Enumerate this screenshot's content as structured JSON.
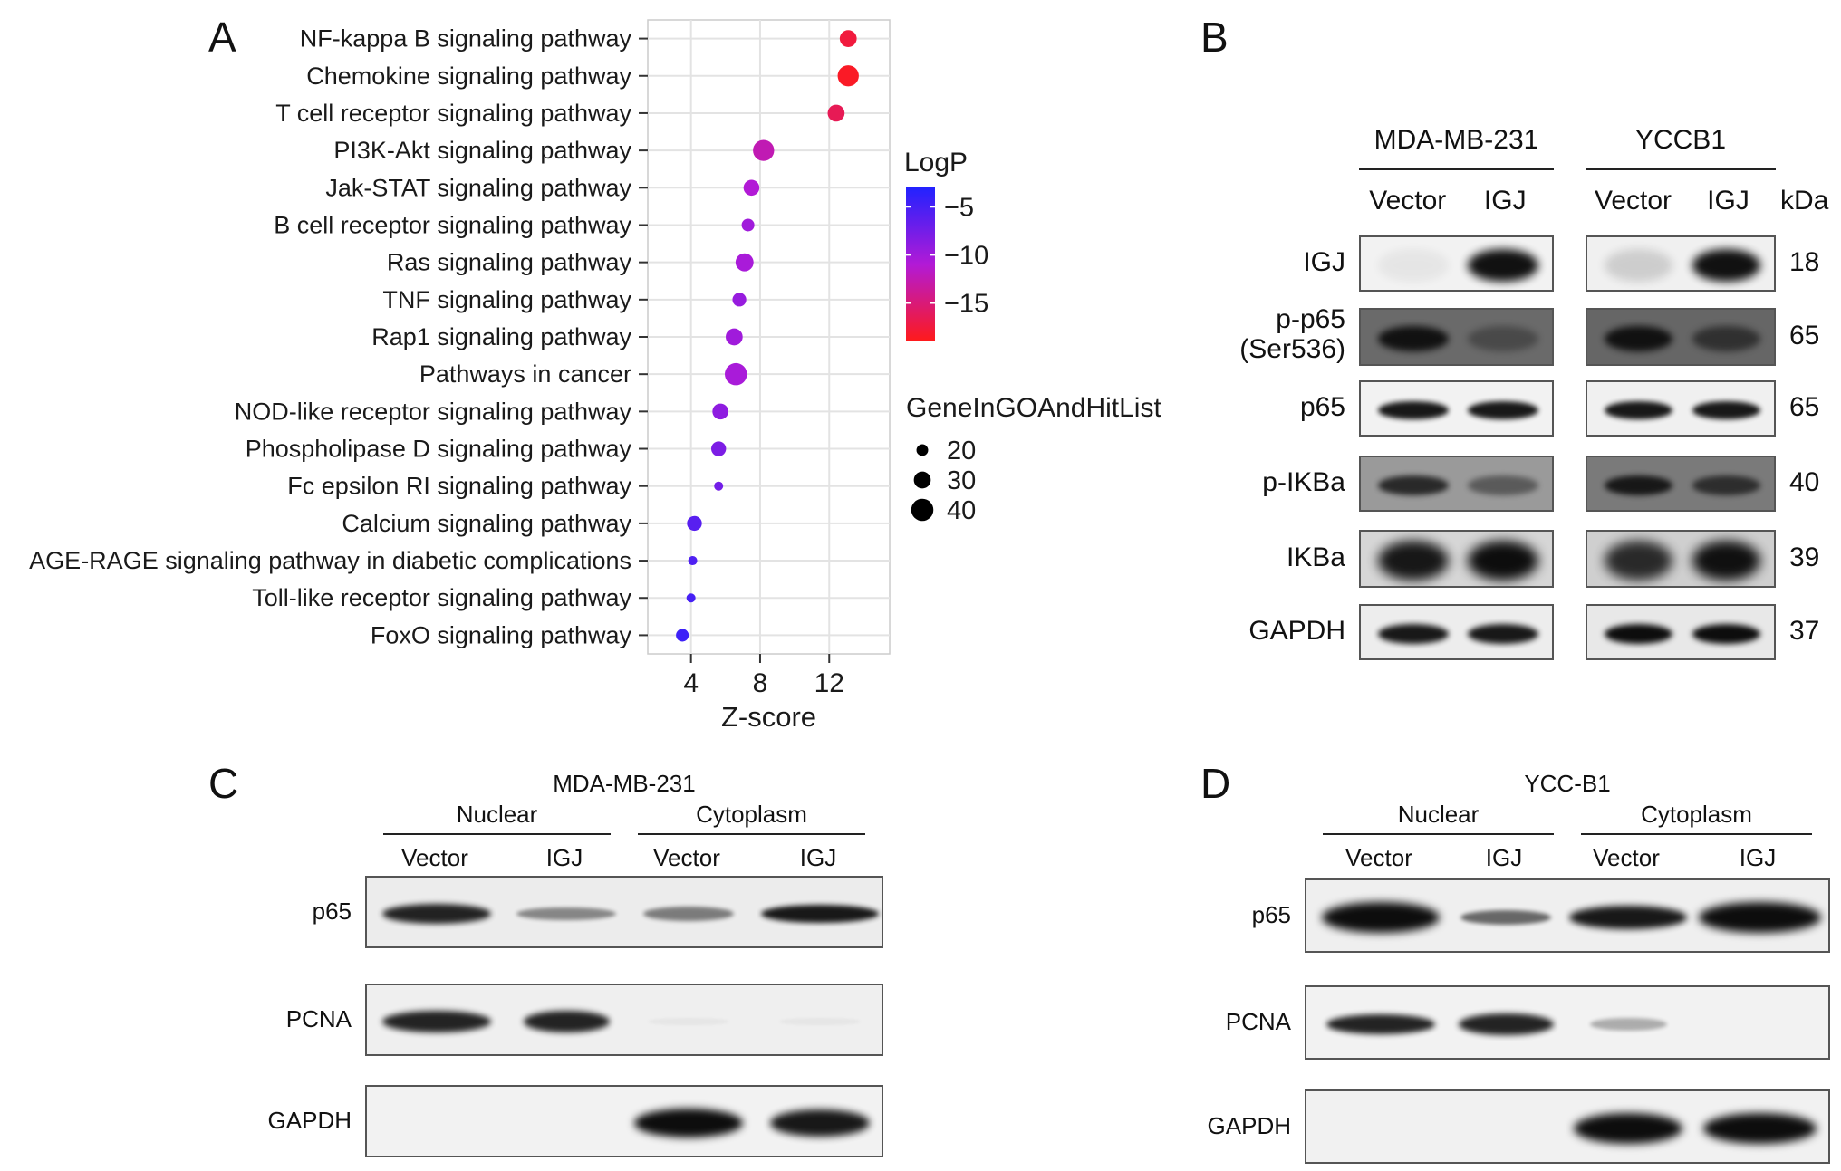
{
  "panels": {
    "a": "A",
    "b": "B",
    "c": "C",
    "d": "D"
  },
  "chart_data": {
    "type": "scatter",
    "xlabel": "Z-score",
    "xlim": [
      1.5,
      15.5
    ],
    "xticks": [
      4,
      8,
      12
    ],
    "grid": true,
    "categories": [
      "NF-kappa B signaling pathway",
      "Chemokine signaling pathway",
      "T cell receptor signaling pathway",
      "PI3K-Akt signaling pathway",
      "Jak-STAT signaling pathway",
      "B cell receptor signaling pathway",
      "Ras signaling pathway",
      "TNF signaling pathway",
      "Rap1 signaling pathway",
      "Pathways in cancer",
      "NOD-like receptor signaling pathway",
      "Phospholipase D signaling pathway",
      "Fc epsilon RI signaling pathway",
      "Calcium signaling pathway",
      "AGE-RAGE signaling pathway in diabetic complications",
      "Toll-like receptor signaling pathway",
      "FoxO signaling pathway"
    ],
    "x": [
      13.1,
      13.1,
      12.4,
      8.2,
      7.5,
      7.3,
      7.1,
      6.8,
      6.5,
      6.6,
      5.7,
      5.6,
      5.6,
      4.2,
      4.1,
      4.0,
      3.5
    ],
    "logp": [
      -17.5,
      -18.5,
      -16.5,
      -12.5,
      -11,
      -10,
      -10.5,
      -9.5,
      -10,
      -10.5,
      -9,
      -8,
      -7.5,
      -6,
      -5.5,
      -5,
      -4.5
    ],
    "gene_count": [
      30,
      38,
      30,
      38,
      28,
      22,
      32,
      24,
      30,
      40,
      28,
      26,
      15,
      26,
      15,
      15,
      22
    ],
    "color_legend": {
      "title": "LogP",
      "ticks": [
        "−5",
        "−10",
        "−15"
      ],
      "range": [
        -19,
        -3
      ],
      "low_color": "#ff1a1a",
      "mid_color": "#b21ad6",
      "high_color": "#2222ff"
    },
    "size_legend": {
      "title": "GeneInGOAndHitList",
      "ticks": [
        "20",
        "30",
        "40"
      ]
    }
  },
  "panel_b": {
    "groups": [
      "MDA-MB-231",
      "YCCB1"
    ],
    "lanes": [
      "Vector",
      "IGJ",
      "Vector",
      "IGJ"
    ],
    "kda_header": "kDa",
    "rows": [
      {
        "label": "IGJ",
        "kda": "18"
      },
      {
        "label": "p-p65\n(Ser536)",
        "kda": "65"
      },
      {
        "label": "p65",
        "kda": "65"
      },
      {
        "label": "p-IKBa",
        "kda": "40"
      },
      {
        "label": "IKBa",
        "kda": "39"
      },
      {
        "label": "GAPDH",
        "kda": "37"
      }
    ]
  },
  "panel_c": {
    "title": "MDA-MB-231",
    "fractions": [
      "Nuclear",
      "Cytoplasm"
    ],
    "lanes": [
      "Vector",
      "IGJ",
      "Vector",
      "IGJ"
    ],
    "rows": [
      "p65",
      "PCNA",
      "GAPDH"
    ]
  },
  "panel_d": {
    "title": "YCC-B1",
    "fractions": [
      "Nuclear",
      "Cytoplasm"
    ],
    "lanes": [
      "Vector",
      "IGJ",
      "Vector",
      "IGJ"
    ],
    "rows": [
      "p65",
      "PCNA",
      "GAPDH"
    ]
  }
}
